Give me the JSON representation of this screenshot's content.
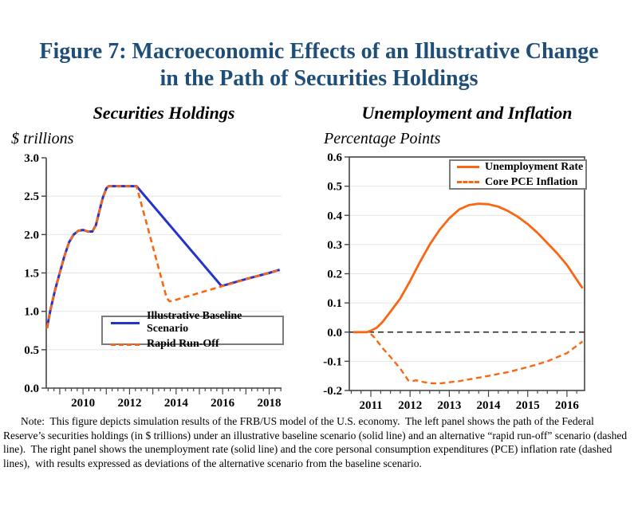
{
  "figure": {
    "title_line1": "Figure 7:  Macroeconomic Effects of an Illustrative Change",
    "title_line2": "in the Path of Securities Holdings",
    "title_color": "#1F4E79",
    "note": "Note:  This figure depicts simulation results of the FRB/US model of the U.S. economy.  The left panel shows the path of the Federal Reserve’s securities holdings (in $ trillions) under an illustrative baseline scenario (solid line) and an alternative “rapid run-off” scenario (dashed line).  The right panel shows the unemployment rate (solid line) and the core personal consumption expenditures (PCE) inflation rate (dashed lines),  with results expressed as deviations of the alternative scenario from the baseline scenario."
  },
  "colors": {
    "baseline_blue": "#2333CC",
    "orange": "#FB6613",
    "gridline": "#e4e4e4",
    "axis": "#444444",
    "zero_line": "#222222",
    "legend_border": "#7b7b7b"
  },
  "chart_data": [
    {
      "type": "line",
      "title": "Securities Holdings",
      "ylabel": "$ trillions",
      "xlabel": "",
      "xlim": [
        2008.42,
        2018.53
      ],
      "ylim": [
        0.0,
        3.0
      ],
      "yticks": [
        0.0,
        0.5,
        1.0,
        1.5,
        2.0,
        2.5,
        3.0
      ],
      "ytick_labels": [
        "0.0",
        "0.5",
        "1.0",
        "1.5",
        "2.0",
        "2.5",
        "3.0"
      ],
      "xtick_label_years": [
        2010,
        2012,
        2014,
        2016,
        2018
      ],
      "grid": true,
      "zero_line": false,
      "legend_position": "lower-center",
      "series": [
        {
          "name": "Illustrative Baseline Scenario",
          "style": "solid",
          "color": "#2333CC",
          "width": 3,
          "points": [
            [
              2008.45,
              0.78
            ],
            [
              2008.6,
              1.02
            ],
            [
              2008.8,
              1.28
            ],
            [
              2009.0,
              1.5
            ],
            [
              2009.2,
              1.72
            ],
            [
              2009.4,
              1.9
            ],
            [
              2009.6,
              2.0
            ],
            [
              2009.8,
              2.05
            ],
            [
              2010.0,
              2.06
            ],
            [
              2010.2,
              2.04
            ],
            [
              2010.4,
              2.04
            ],
            [
              2010.55,
              2.12
            ],
            [
              2010.7,
              2.3
            ],
            [
              2010.85,
              2.48
            ],
            [
              2011.0,
              2.6
            ],
            [
              2011.1,
              2.63
            ],
            [
              2012.3,
              2.63
            ],
            [
              2015.95,
              1.33
            ],
            [
              2016.2,
              1.35
            ],
            [
              2017.0,
              1.42
            ],
            [
              2018.0,
              1.5
            ],
            [
              2018.45,
              1.54
            ]
          ]
        },
        {
          "name": "Rapid Run-Off",
          "style": "dashed",
          "color": "#FB6613",
          "width": 2.6,
          "points": [
            [
              2008.45,
              0.78
            ],
            [
              2008.6,
              1.02
            ],
            [
              2008.8,
              1.28
            ],
            [
              2009.0,
              1.5
            ],
            [
              2009.2,
              1.72
            ],
            [
              2009.4,
              1.9
            ],
            [
              2009.6,
              2.0
            ],
            [
              2009.8,
              2.05
            ],
            [
              2010.0,
              2.06
            ],
            [
              2010.2,
              2.04
            ],
            [
              2010.4,
              2.04
            ],
            [
              2010.55,
              2.12
            ],
            [
              2010.7,
              2.3
            ],
            [
              2010.85,
              2.48
            ],
            [
              2011.0,
              2.6
            ],
            [
              2011.1,
              2.63
            ],
            [
              2012.3,
              2.63
            ],
            [
              2013.6,
              1.17
            ],
            [
              2013.72,
              1.13
            ],
            [
              2013.9,
              1.14
            ],
            [
              2014.2,
              1.17
            ],
            [
              2015.0,
              1.24
            ],
            [
              2016.0,
              1.33
            ],
            [
              2016.5,
              1.37
            ],
            [
              2017.0,
              1.42
            ],
            [
              2018.0,
              1.5
            ],
            [
              2018.45,
              1.54
            ]
          ]
        }
      ]
    },
    {
      "type": "line",
      "title": "Unemployment and Inflation",
      "ylabel": "Percentage Points",
      "xlabel": "",
      "xlim": [
        2010.45,
        2016.45
      ],
      "ylim": [
        -0.2,
        0.6
      ],
      "yticks": [
        -0.2,
        -0.1,
        0.0,
        0.1,
        0.2,
        0.3,
        0.4,
        0.5,
        0.6
      ],
      "ytick_labels": [
        "-0.2",
        "-0.1",
        "0.0",
        "0.1",
        "0.2",
        "0.3",
        "0.4",
        "0.5",
        "0.6"
      ],
      "xtick_label_years": [
        2011,
        2012,
        2013,
        2014,
        2015,
        2016
      ],
      "grid": true,
      "zero_line": true,
      "legend_position": "upper-right",
      "series": [
        {
          "name": "Unemployment Rate",
          "style": "solid",
          "color": "#FB6613",
          "width": 2.8,
          "points": [
            [
              2010.55,
              0.0
            ],
            [
              2010.9,
              0.0
            ],
            [
              2011.0,
              0.005
            ],
            [
              2011.15,
              0.015
            ],
            [
              2011.3,
              0.035
            ],
            [
              2011.5,
              0.07
            ],
            [
              2011.75,
              0.115
            ],
            [
              2012.0,
              0.175
            ],
            [
              2012.25,
              0.24
            ],
            [
              2012.5,
              0.3
            ],
            [
              2012.75,
              0.35
            ],
            [
              2013.0,
              0.39
            ],
            [
              2013.25,
              0.42
            ],
            [
              2013.5,
              0.435
            ],
            [
              2013.75,
              0.44
            ],
            [
              2014.0,
              0.438
            ],
            [
              2014.25,
              0.43
            ],
            [
              2014.5,
              0.415
            ],
            [
              2014.75,
              0.395
            ],
            [
              2015.0,
              0.37
            ],
            [
              2015.25,
              0.34
            ],
            [
              2015.5,
              0.305
            ],
            [
              2015.75,
              0.27
            ],
            [
              2016.0,
              0.23
            ],
            [
              2016.2,
              0.19
            ],
            [
              2016.4,
              0.15
            ]
          ]
        },
        {
          "name": "Core PCE Inflation",
          "style": "dashed",
          "color": "#FB6613",
          "width": 2.4,
          "points": [
            [
              2010.55,
              0.0
            ],
            [
              2010.95,
              0.0
            ],
            [
              2011.1,
              -0.02
            ],
            [
              2011.3,
              -0.055
            ],
            [
              2011.5,
              -0.085
            ],
            [
              2011.75,
              -0.125
            ],
            [
              2011.95,
              -0.165
            ],
            [
              2012.05,
              -0.168
            ],
            [
              2012.15,
              -0.165
            ],
            [
              2012.3,
              -0.17
            ],
            [
              2012.5,
              -0.175
            ],
            [
              2012.75,
              -0.176
            ],
            [
              2013.0,
              -0.172
            ],
            [
              2013.25,
              -0.168
            ],
            [
              2013.5,
              -0.162
            ],
            [
              2014.0,
              -0.15
            ],
            [
              2014.5,
              -0.137
            ],
            [
              2015.0,
              -0.12
            ],
            [
              2015.5,
              -0.1
            ],
            [
              2016.0,
              -0.072
            ],
            [
              2016.4,
              -0.032
            ]
          ]
        }
      ]
    }
  ]
}
